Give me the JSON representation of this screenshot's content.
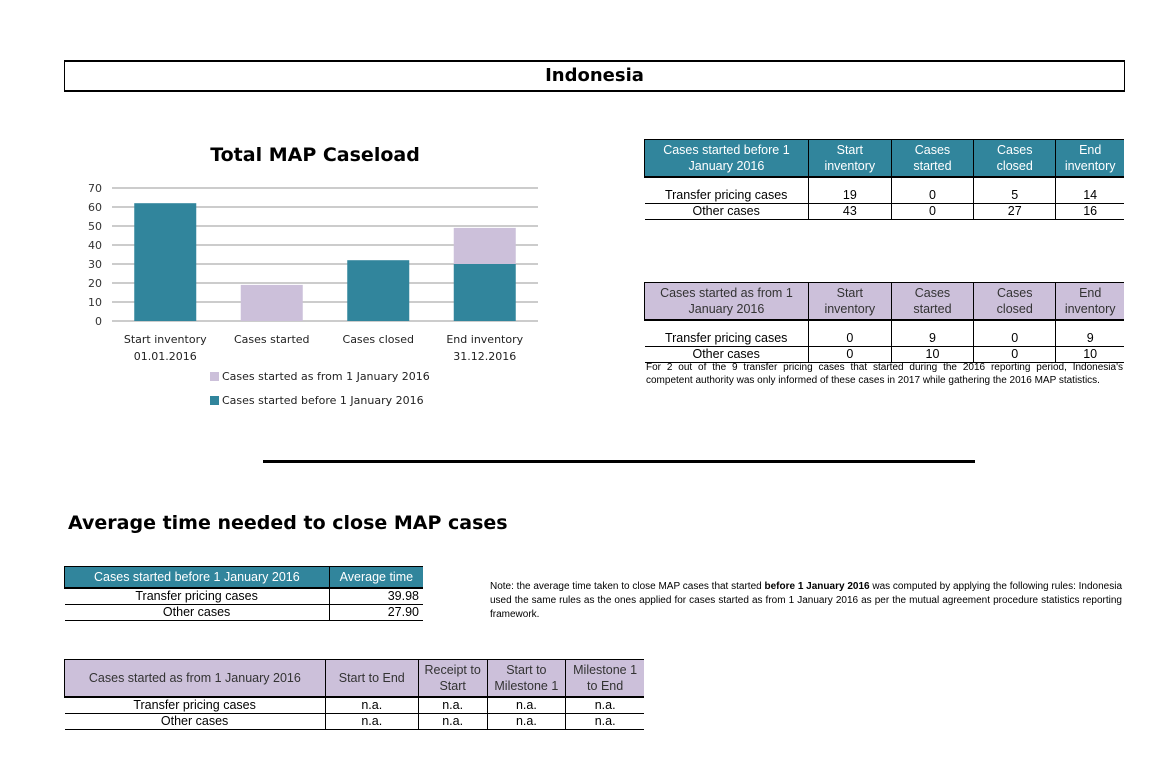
{
  "page_title": "Indonesia",
  "chart_data": {
    "type": "bar",
    "stacked": true,
    "title": "Total MAP Caseload",
    "categories": [
      [
        "Start inventory",
        "01.01.2016"
      ],
      [
        "Cases started",
        ""
      ],
      [
        "Cases closed",
        ""
      ],
      [
        "End inventory",
        "31.12.2016"
      ]
    ],
    "series": [
      {
        "name": "Cases started before 1 January 2016",
        "color": "#31859c",
        "values": [
          62,
          0,
          32,
          30
        ]
      },
      {
        "name": "Cases started as from 1 January 2016",
        "color": "#ccc0da",
        "values": [
          0,
          19,
          0,
          19
        ]
      }
    ],
    "yticks": [
      0,
      10,
      20,
      30,
      40,
      50,
      60,
      70
    ],
    "ylim": [
      0,
      70
    ],
    "grid": true,
    "legend_position": "bottom",
    "legend_order": [
      "Cases started as from 1 January 2016",
      "Cases started before 1 January 2016"
    ]
  },
  "table_before": {
    "headers": [
      "Cases started before 1 January 2016",
      "Start inventory",
      "Cases started",
      "Cases closed",
      "End inventory"
    ],
    "rows": [
      [
        "Transfer pricing cases",
        "19",
        "0",
        "5",
        "14"
      ],
      [
        "Other cases",
        "43",
        "0",
        "27",
        "16"
      ]
    ]
  },
  "table_from": {
    "headers": [
      "Cases started as from 1 January 2016",
      "Start inventory",
      "Cases started",
      "Cases closed",
      "End inventory"
    ],
    "rows": [
      [
        "Transfer pricing cases",
        "0",
        "9",
        "0",
        "9"
      ],
      [
        "Other cases",
        "0",
        "10",
        "0",
        "10"
      ]
    ],
    "note": "For 2 out of the 9 transfer pricing cases that started during the 2016 reporting period, Indonesia's competent authority was only informed of these cases in 2017 while gathering the 2016 MAP statistics."
  },
  "avg_section": {
    "title": "Average time needed to close MAP cases",
    "table_before": {
      "headers": [
        "Cases started before 1 January 2016",
        "Average time"
      ],
      "rows": [
        [
          "Transfer pricing cases",
          "39.98"
        ],
        [
          "Other cases",
          "27.90"
        ]
      ]
    },
    "note_prefix": "Note: the average time taken to close MAP cases that started ",
    "note_bold": "before 1 January 2016",
    "note_suffix": " was computed by applying the following rules: Indonesia used the same rules as the ones applied for cases started as from 1 January 2016 as per the mutual agreement procedure statistics reporting framework.",
    "table_from": {
      "headers": [
        "Cases started as from 1 January 2016",
        "Start to End",
        "Receipt to Start",
        "Start to Milestone 1",
        "Milestone 1 to End"
      ],
      "rows": [
        [
          "Transfer pricing cases",
          "n.a.",
          "n.a.",
          "n.a.",
          "n.a."
        ],
        [
          "Other cases",
          "n.a.",
          "n.a.",
          "n.a.",
          "n.a."
        ]
      ]
    }
  }
}
